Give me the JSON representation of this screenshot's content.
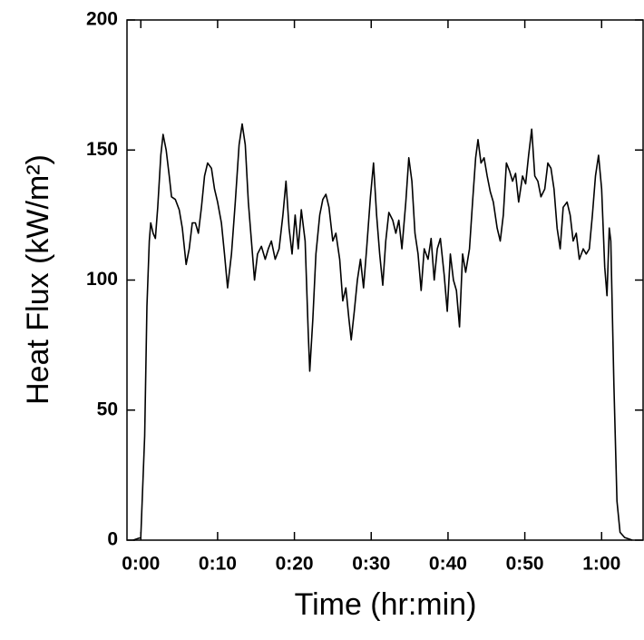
{
  "chart_data": {
    "type": "line",
    "xlabel": "Time (hr:min)",
    "ylabel": "Heat Flux (kW/m²)",
    "color": "#000000",
    "x": [
      -1,
      0,
      0.5,
      0.8,
      1.1,
      1.3,
      1.6,
      1.9,
      2.2,
      2.6,
      2.9,
      3.3,
      3.7,
      4.0,
      4.5,
      5.0,
      5.4,
      5.9,
      6.3,
      6.7,
      7.1,
      7.5,
      7.9,
      8.3,
      8.7,
      9.2,
      9.6,
      10.0,
      10.5,
      10.9,
      11.3,
      11.8,
      12.3,
      12.8,
      13.2,
      13.6,
      14.0,
      14.4,
      14.8,
      15.2,
      15.7,
      16.2,
      16.6,
      17.0,
      17.5,
      18.0,
      18.5,
      18.9,
      19.3,
      19.7,
      20.1,
      20.5,
      20.9,
      21.4,
      21.8,
      22.0,
      22.4,
      22.8,
      23.3,
      23.7,
      24.1,
      24.5,
      25.0,
      25.4,
      25.9,
      26.3,
      26.7,
      27.1,
      27.4,
      27.8,
      28.2,
      28.6,
      29.0,
      29.4,
      29.9,
      30.3,
      30.7,
      31.1,
      31.5,
      31.9,
      32.3,
      32.8,
      33.2,
      33.6,
      34.0,
      34.5,
      34.9,
      35.3,
      35.7,
      36.1,
      36.5,
      36.9,
      37.4,
      37.8,
      38.2,
      38.6,
      39.0,
      39.5,
      39.9,
      40.3,
      40.7,
      41.1,
      41.5,
      41.9,
      42.3,
      42.8,
      43.2,
      43.6,
      43.9,
      44.3,
      44.7,
      45.1,
      45.5,
      45.9,
      46.4,
      46.8,
      47.2,
      47.6,
      48.0,
      48.4,
      48.8,
      49.2,
      49.7,
      50.1,
      50.5,
      50.9,
      51.3,
      51.7,
      52.1,
      52.6,
      53.0,
      53.4,
      53.8,
      54.2,
      54.6,
      55.0,
      55.5,
      55.9,
      56.3,
      56.7,
      57.1,
      57.6,
      58.0,
      58.4,
      58.8,
      59.2,
      59.6,
      60.0,
      60.4,
      60.7,
      61.0,
      61.2,
      61.6,
      62.0,
      62.4,
      63.0,
      64.0
    ],
    "values": [
      0,
      1,
      40,
      90,
      115,
      122,
      118,
      116,
      128,
      148,
      156,
      150,
      140,
      132,
      131,
      127,
      120,
      106,
      112,
      122,
      122,
      118,
      128,
      140,
      145,
      143,
      135,
      130,
      122,
      110,
      97,
      110,
      130,
      152,
      160,
      152,
      130,
      115,
      100,
      110,
      113,
      108,
      112,
      115,
      108,
      112,
      125,
      138,
      120,
      110,
      125,
      112,
      127,
      115,
      80,
      65,
      85,
      110,
      125,
      131,
      133,
      128,
      115,
      118,
      108,
      92,
      97,
      85,
      77,
      88,
      100,
      108,
      97,
      112,
      132,
      145,
      125,
      110,
      98,
      115,
      126,
      123,
      118,
      123,
      112,
      130,
      147,
      138,
      118,
      110,
      96,
      112,
      108,
      116,
      100,
      112,
      116,
      102,
      88,
      110,
      100,
      96,
      82,
      110,
      103,
      112,
      130,
      147,
      154,
      145,
      147,
      140,
      134,
      130,
      120,
      115,
      125,
      145,
      142,
      138,
      141,
      130,
      140,
      137,
      148,
      158,
      140,
      138,
      132,
      135,
      145,
      143,
      135,
      120,
      112,
      128,
      130,
      125,
      115,
      118,
      108,
      112,
      110,
      112,
      125,
      140,
      148,
      135,
      105,
      94,
      120,
      115,
      60,
      15,
      3,
      1,
      0
    ],
    "xlim": [
      -1.8,
      65.4
    ],
    "ylim": [
      0,
      200
    ],
    "xticks": [
      {
        "value": 0,
        "label": "0:00"
      },
      {
        "value": 10,
        "label": "0:10"
      },
      {
        "value": 20,
        "label": "0:20"
      },
      {
        "value": 30,
        "label": "0:30"
      },
      {
        "value": 40,
        "label": "0:40"
      },
      {
        "value": 50,
        "label": "0:50"
      },
      {
        "value": 60,
        "label": "1:00"
      }
    ],
    "yticks": [
      0,
      50,
      100,
      150,
      200
    ],
    "grid": false
  }
}
